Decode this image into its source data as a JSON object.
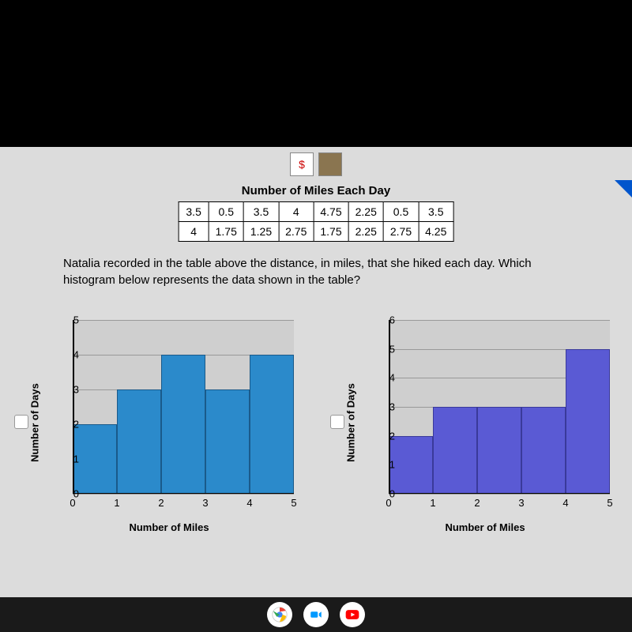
{
  "toolbar": {
    "dollar": "$"
  },
  "title": "Number of Miles Each Day",
  "table": {
    "row1": [
      "3.5",
      "0.5",
      "3.5",
      "4",
      "4.75",
      "2.25",
      "0.5",
      "3.5"
    ],
    "row2": [
      "4",
      "1.75",
      "1.25",
      "2.75",
      "1.75",
      "2.25",
      "2.75",
      "4.25"
    ]
  },
  "question": "Natalia recorded in the table above the distance, in miles, that she hiked each day. Which histogram below represents the data shown in the table?",
  "chartLeft": {
    "ylabel": "Number of Days",
    "xlabel": "Number of Miles",
    "ymax": 5,
    "yticks": [
      0,
      1,
      2,
      3,
      4,
      5
    ],
    "xticks": [
      0,
      1,
      2,
      3,
      4,
      5
    ],
    "bars": [
      {
        "x": 0,
        "h": 2
      },
      {
        "x": 1,
        "h": 3
      },
      {
        "x": 2,
        "h": 4
      },
      {
        "x": 3,
        "h": 3
      },
      {
        "x": 4,
        "h": 4
      }
    ],
    "barColor": "#2b8acb",
    "barBorder": "#1a5a8a",
    "plotBg": "#cfcfcf",
    "gridColor": "#999"
  },
  "chartRight": {
    "ylabel": "Number of Days",
    "xlabel": "Number of Miles",
    "ymax": 6,
    "yticks": [
      0,
      1,
      2,
      3,
      4,
      5,
      6
    ],
    "xticks": [
      0,
      1,
      2,
      3,
      4,
      5
    ],
    "bars": [
      {
        "x": 0,
        "h": 2
      },
      {
        "x": 1,
        "h": 3
      },
      {
        "x": 2,
        "h": 3
      },
      {
        "x": 3,
        "h": 3
      },
      {
        "x": 4,
        "h": 5
      }
    ],
    "barColor": "#5a5ad4",
    "barBorder": "#3a3a9a",
    "plotBg": "#cfcfcf",
    "gridColor": "#999"
  },
  "taskbar": {
    "chrome": {
      "bg": "#fff"
    },
    "meet": {
      "bg": "#fff",
      "color": "#0099ff"
    },
    "youtube": {
      "bg": "#fff",
      "color": "#ff0000"
    }
  }
}
